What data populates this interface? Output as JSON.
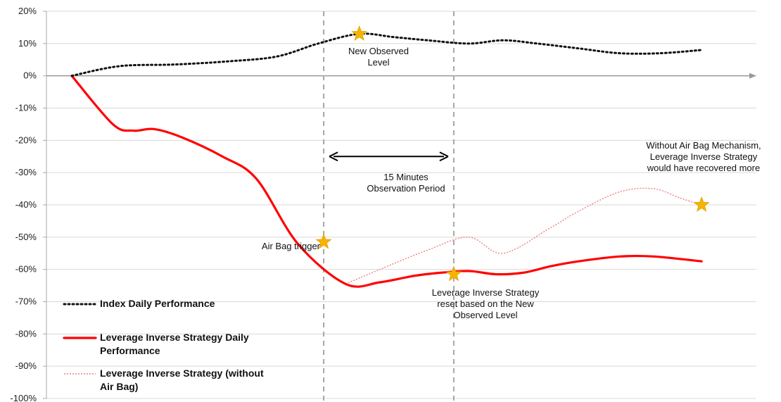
{
  "chart_data": {
    "type": "line",
    "ylim": [
      -100,
      20
    ],
    "y_ticks": [
      "20%",
      "10%",
      "0%",
      "-10%",
      "-20%",
      "-30%",
      "-40%",
      "-50%",
      "-60%",
      "-70%",
      "-80%",
      "-90%",
      "-100%"
    ],
    "y_tick_values": [
      20,
      10,
      0,
      -10,
      -20,
      -30,
      -40,
      -50,
      -60,
      -70,
      -80,
      -90,
      -100
    ],
    "xlim": [
      0,
      100
    ],
    "grid": true,
    "legend_position": "bottom-left",
    "series": [
      {
        "name": "Index Daily Performance",
        "color": "#111111",
        "style": "dotted",
        "x": [
          0,
          7,
          15,
          23,
          30,
          36,
          42,
          47,
          52,
          58,
          63,
          68,
          74,
          80,
          86,
          92
        ],
        "y": [
          0,
          3,
          3.5,
          4.5,
          6,
          10,
          13,
          12,
          11,
          10,
          11,
          10,
          8.5,
          7,
          7,
          8
        ]
      },
      {
        "name": "Leverage Inverse Strategy Daily Performance",
        "color": "#ff0000",
        "style": "solid",
        "x": [
          0,
          6,
          9,
          12,
          16,
          22,
          27,
          33,
          40,
          45,
          50,
          54,
          58,
          62,
          66,
          70,
          74,
          80,
          85,
          92
        ],
        "y": [
          0,
          -15,
          -17,
          -16.5,
          -19,
          -25,
          -32,
          -52,
          -64.5,
          -64,
          -62,
          -61,
          -60.5,
          -61.5,
          -61,
          -59,
          -57.5,
          -56,
          -56,
          -57.5
        ]
      },
      {
        "name": "Leverage Inverse Strategy (without Air Bag)",
        "color": "#f08080",
        "style": "dotted",
        "x": [
          40,
          45,
          52,
          58,
          63,
          70,
          74,
          80,
          85,
          89,
          92
        ],
        "y": [
          -64.5,
          -60,
          -54,
          -50,
          -55,
          -47,
          -42,
          -36,
          -35,
          -38,
          -40
        ]
      }
    ],
    "vertical_markers": [
      36.8,
      55.8
    ],
    "stars": [
      {
        "x": 42,
        "y": 13
      },
      {
        "x": 36.8,
        "y": -51.5
      },
      {
        "x": 55.8,
        "y": -61.5
      },
      {
        "x": 92,
        "y": -40
      }
    ],
    "annotations": {
      "new_level": [
        "New Observed",
        "Level"
      ],
      "observation": [
        "15 Minutes",
        "Observation Period"
      ],
      "air_bag_trigger": "Air Bag trigger",
      "reset": [
        "Leverage Inverse Strategy",
        "reset based on the New",
        "Observed Level"
      ],
      "without_air_bag": [
        "Without Air Bag Mechanism,",
        "Leverage Inverse Strategy",
        "would have recovered more"
      ]
    },
    "legend": [
      {
        "lines": [
          "Index Daily Performance"
        ],
        "series": 0
      },
      {
        "lines": [
          "Leverage Inverse Strategy Daily",
          "Performance"
        ],
        "series": 1
      },
      {
        "lines": [
          "Leverage Inverse Strategy (without",
          "Air Bag)"
        ],
        "series": 2
      }
    ]
  }
}
